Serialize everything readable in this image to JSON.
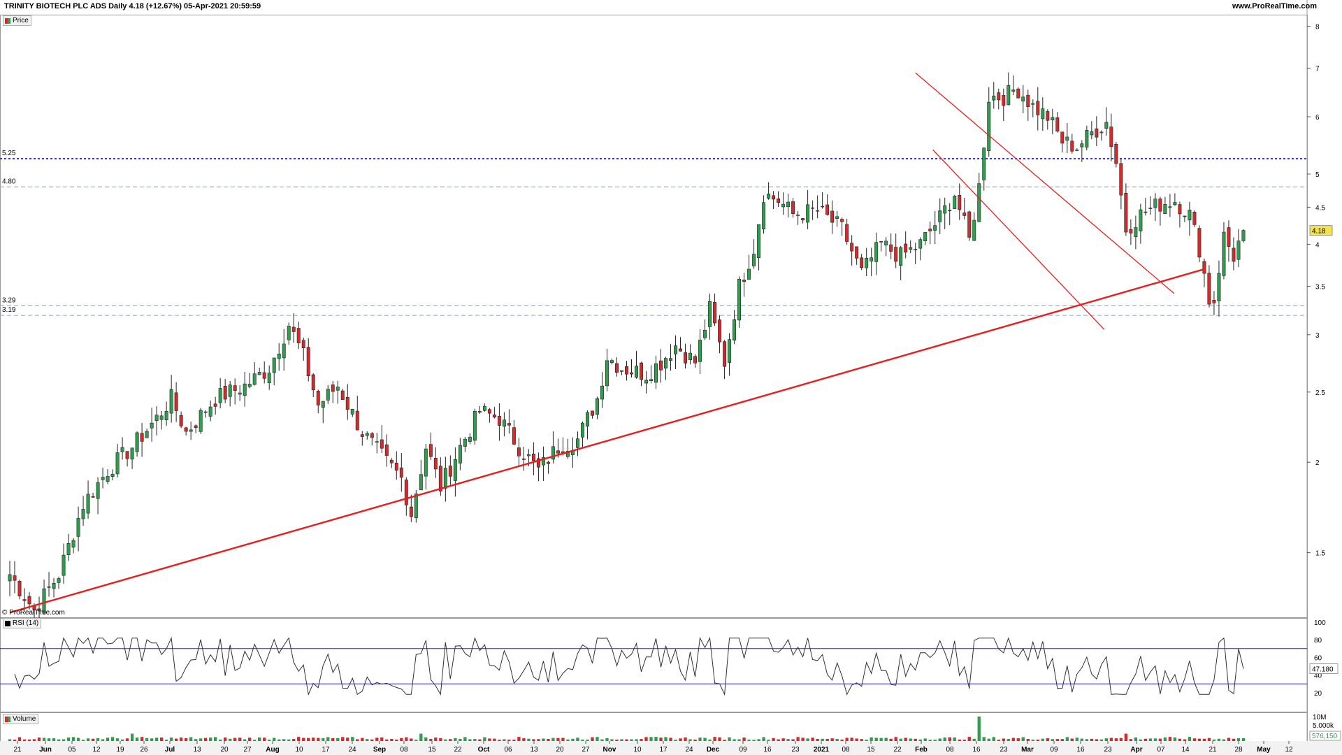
{
  "header": {
    "title": "TRINITY BIOTECH PLC ADS Daily 4.18 (+12.67%) 05-Apr-2021 20:59:59",
    "source": "www.ProRealTime.com"
  },
  "panels": {
    "price_tag": "Price",
    "rsi_tag": "RSI (14)",
    "volume_tag": "Volume",
    "copyright": "© ProRealTime.com"
  },
  "colors": {
    "up": "#2e9d4c",
    "down": "#d62a2a",
    "trendline": "#e51f1f",
    "dashed_level": "#8fb3f0",
    "dotted_level": "#3b3bc8",
    "rsi_line": "#303030",
    "rsi_band": "#2020c0",
    "last_price_bg": "#f3e24a"
  },
  "chart_data": {
    "type": "candlestick",
    "scale": "log",
    "ylim": [
      1.2,
      8.3
    ],
    "price_axis_ticks": [
      "8",
      "7",
      "6",
      "5",
      "4.5",
      "4",
      "3.5",
      "3",
      "2.5",
      "2",
      "1.5"
    ],
    "last_price_label": "4.18",
    "levels": [
      {
        "label": "5.25",
        "value": 5.25,
        "style": "dotted"
      },
      {
        "label": "4.80",
        "value": 4.8,
        "style": "dashed"
      },
      {
        "label": "3.29",
        "value": 3.29,
        "style": "dashed"
      },
      {
        "label": "3.19",
        "value": 3.19,
        "style": "dashed"
      }
    ],
    "x_ticks": [
      "21",
      "Jun",
      "05",
      "12",
      "19",
      "26",
      "Jul",
      "13",
      "20",
      "27",
      "Aug",
      "10",
      "17",
      "24",
      "Sep",
      "08",
      "15",
      "22",
      "Oct",
      "06",
      "13",
      "20",
      "27",
      "Nov",
      "10",
      "17",
      "24",
      "Dec",
      "09",
      "16",
      "23",
      "2021",
      "08",
      "15",
      "22",
      "Feb",
      "08",
      "16",
      "23",
      "Mar",
      "09",
      "16",
      "23",
      "Apr",
      "07",
      "14",
      "21",
      "28",
      "May",
      "12"
    ],
    "candle_points": [
      [
        0,
        1.4
      ],
      [
        5,
        1.25
      ],
      [
        10,
        1.4
      ],
      [
        15,
        1.75
      ],
      [
        20,
        1.95
      ],
      [
        25,
        2.1
      ],
      [
        30,
        2.3
      ],
      [
        33,
        2.45
      ],
      [
        36,
        2.2
      ],
      [
        42,
        2.45
      ],
      [
        48,
        2.55
      ],
      [
        53,
        2.7
      ],
      [
        57,
        3.1
      ],
      [
        60,
        2.8
      ],
      [
        63,
        2.4
      ],
      [
        67,
        2.55
      ],
      [
        72,
        2.2
      ],
      [
        77,
        2.0
      ],
      [
        80,
        1.9
      ],
      [
        82,
        1.7
      ],
      [
        85,
        2.1
      ],
      [
        88,
        1.85
      ],
      [
        92,
        2.1
      ],
      [
        96,
        2.35
      ],
      [
        100,
        2.3
      ],
      [
        104,
        2.1
      ],
      [
        108,
        1.95
      ],
      [
        112,
        2.1
      ],
      [
        116,
        2.15
      ],
      [
        120,
        2.45
      ],
      [
        122,
        2.8
      ],
      [
        125,
        2.7
      ],
      [
        130,
        2.65
      ],
      [
        133,
        2.75
      ],
      [
        136,
        2.9
      ],
      [
        140,
        2.75
      ],
      [
        143,
        3.25
      ],
      [
        146,
        2.75
      ],
      [
        149,
        3.5
      ],
      [
        152,
        3.95
      ],
      [
        154,
        4.7
      ],
      [
        157,
        4.6
      ],
      [
        160,
        4.4
      ],
      [
        165,
        4.45
      ],
      [
        170,
        4.2
      ],
      [
        174,
        3.65
      ],
      [
        178,
        4.0
      ],
      [
        182,
        3.85
      ],
      [
        186,
        4.0
      ],
      [
        190,
        4.35
      ],
      [
        193,
        4.7
      ],
      [
        196,
        4.05
      ],
      [
        198,
        4.8
      ],
      [
        200,
        6.4
      ],
      [
        203,
        6.4
      ],
      [
        206,
        6.55
      ],
      [
        209,
        6.2
      ],
      [
        212,
        6.0
      ],
      [
        215,
        5.55
      ],
      [
        218,
        5.45
      ],
      [
        221,
        5.7
      ],
      [
        224,
        5.9
      ],
      [
        226,
        5.2
      ],
      [
        228,
        4.2
      ],
      [
        231,
        4.4
      ],
      [
        235,
        4.55
      ],
      [
        238,
        4.6
      ],
      [
        241,
        4.4
      ],
      [
        243,
        3.95
      ],
      [
        245,
        3.35
      ],
      [
        246,
        3.35
      ],
      [
        248,
        4.1
      ],
      [
        250,
        3.85
      ],
      [
        252,
        4.18
      ]
    ],
    "trendlines": [
      {
        "name": "support",
        "from": [
          "21 May 2020",
          1.24
        ],
        "to": [
          "28 Apr 2021",
          3.7
        ]
      },
      {
        "name": "channel-upper",
        "from": [
          "04 Feb 2021",
          6.9
        ],
        "to": [
          "19 Apr 2021",
          3.42
        ]
      },
      {
        "name": "channel-lower",
        "from": [
          "09 Feb 2021",
          5.4
        ],
        "to": [
          "30 Mar 2021",
          3.05
        ]
      }
    ],
    "rsi": {
      "period": 14,
      "value_label": "47.180",
      "axis_ticks": [
        "100",
        "80",
        "60",
        "40",
        "20"
      ],
      "bands": [
        70,
        30
      ]
    },
    "volume": {
      "axis_ticks": [
        "10M",
        "5.000k"
      ],
      "value_label": "576,150"
    }
  }
}
